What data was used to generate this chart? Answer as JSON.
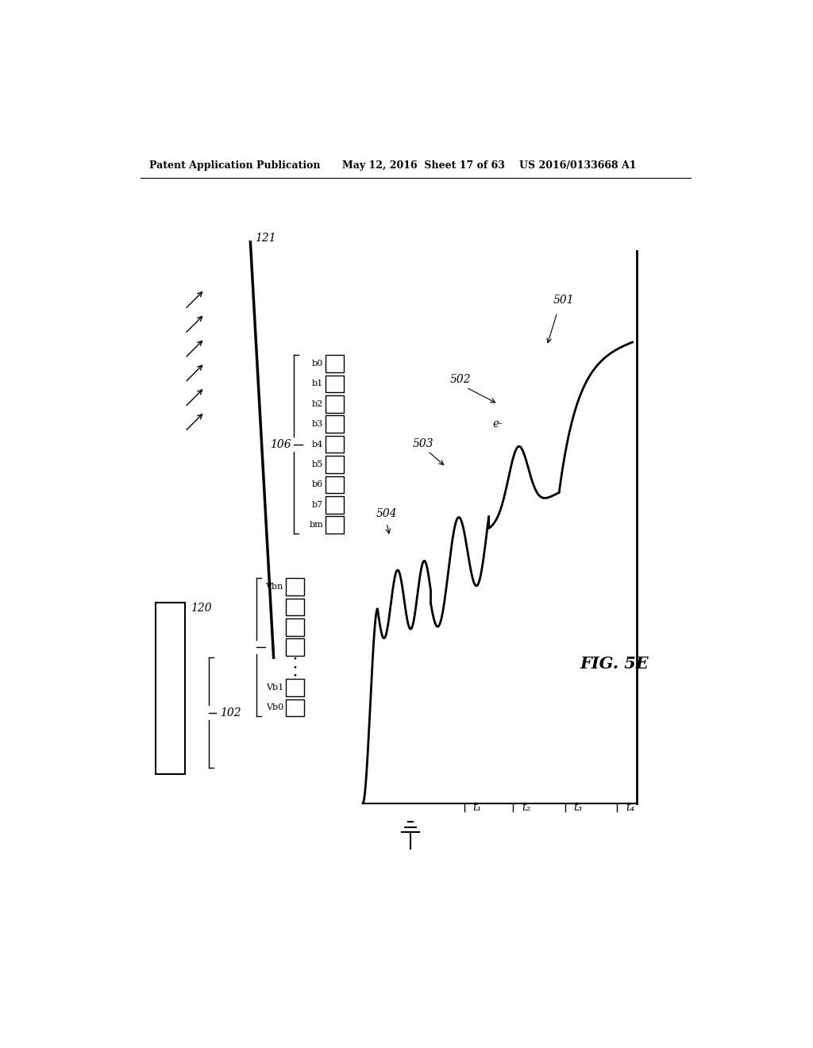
{
  "header_left": "Patent Application Publication",
  "header_mid": "May 12, 2016  Sheet 17 of 63",
  "header_right": "US 2016/0133668 A1",
  "fig_label": "FIG. 5E",
  "ref_121": "121",
  "ref_120": "120",
  "ref_102": "102",
  "ref_106": "106",
  "ref_501": "501",
  "ref_502": "502",
  "ref_503": "503",
  "ref_504": "504",
  "label_e": "e-",
  "label_t1": "t₁",
  "label_t2": "t₂",
  "label_t3": "t₃",
  "label_t4": "t₄",
  "bins_b": [
    "b0",
    "b1",
    "b2",
    "b3",
    "b4",
    "b5",
    "b6",
    "b7",
    "bm"
  ],
  "bins_vb": [
    "Vbn",
    "",
    "",
    "",
    "",
    "Vb1",
    "Vb0"
  ],
  "background_color": "#ffffff",
  "line_color": "#000000"
}
